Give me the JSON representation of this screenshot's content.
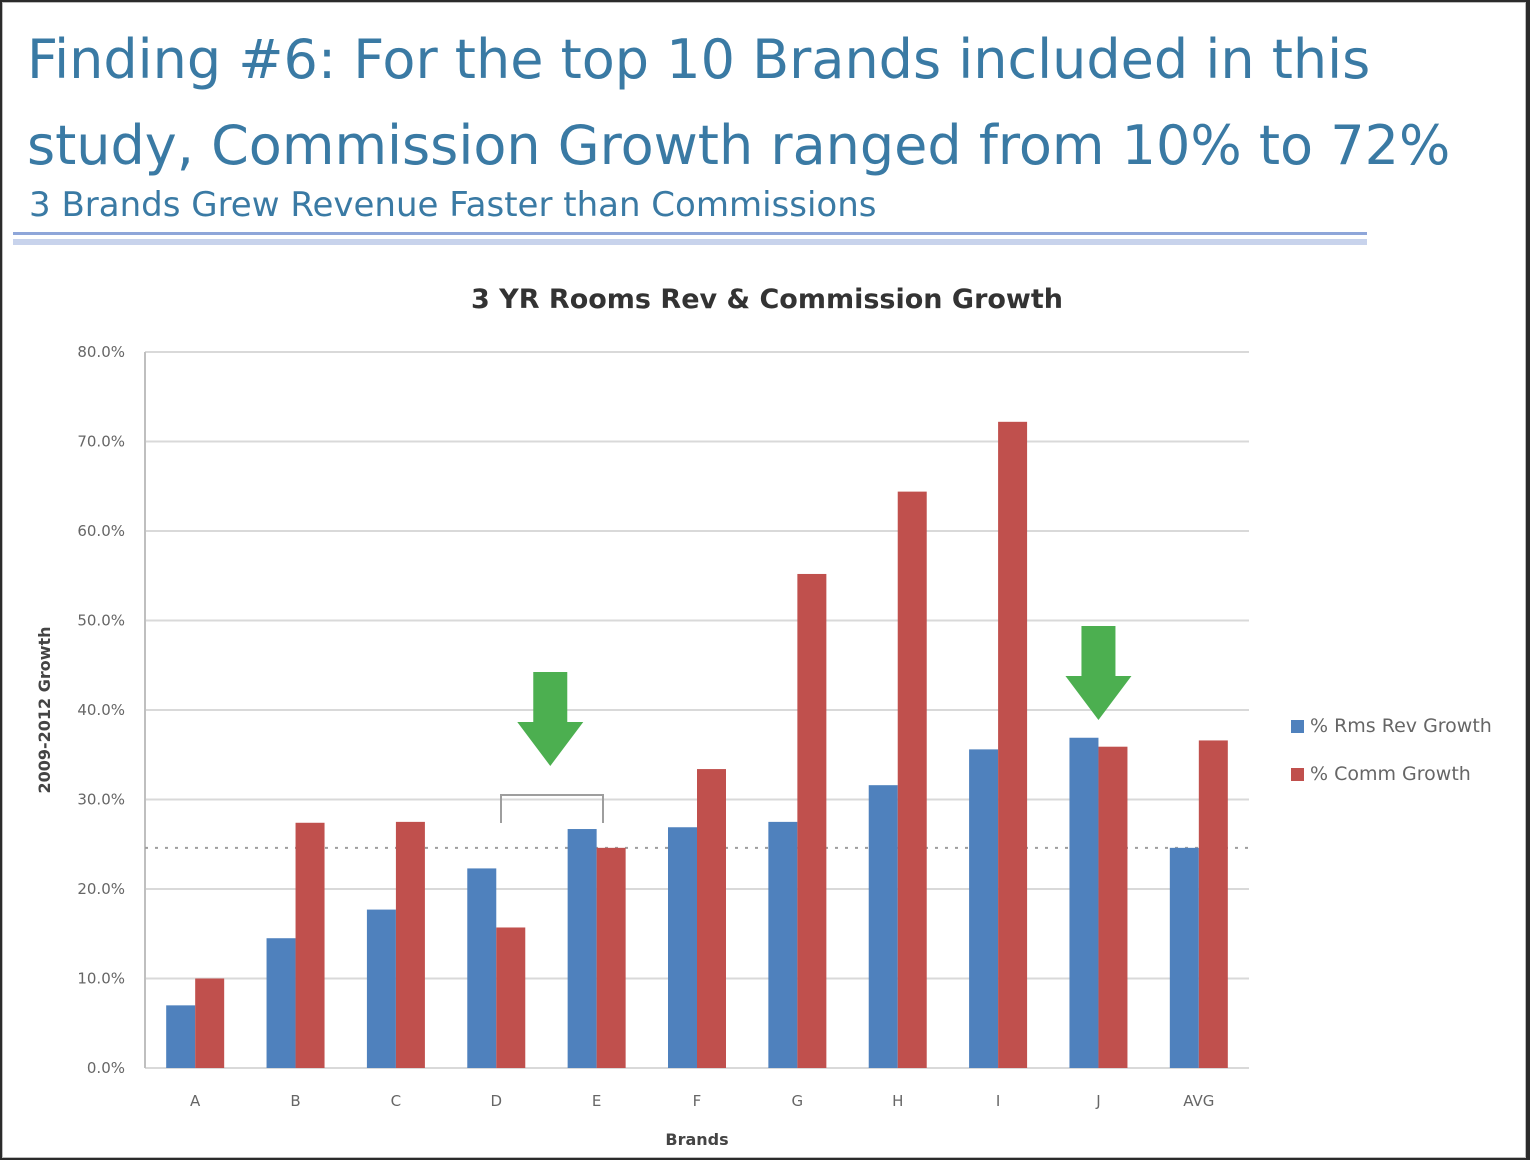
{
  "slide": {
    "title": "Finding #6: For the top 10 Brands included in this study, Commission Growth ranged from 10% to 72%",
    "subtitle": "3  Brands Grew Revenue Faster than Commissions"
  },
  "colors": {
    "title_text": "#3a7aa4",
    "rev_series": "#4f81bd",
    "comm_series": "#c0504d",
    "arrow": "#4caf50",
    "gridline": "#d9d9d9",
    "average_line": "#9e9e9e"
  },
  "chart_data": {
    "type": "bar",
    "title": "3 YR Rooms Rev & Commission Growth",
    "xlabel": "Brands",
    "ylabel": "2009-2012 Growth",
    "categories": [
      "A",
      "B",
      "C",
      "D",
      "E",
      "F",
      "G",
      "H",
      "I",
      "J",
      "AVG"
    ],
    "series": [
      {
        "name": "% Rms Rev Growth",
        "values": [
          7.0,
          14.5,
          17.7,
          22.3,
          26.7,
          26.9,
          27.5,
          31.6,
          35.6,
          36.9,
          24.6
        ]
      },
      {
        "name": "% Comm Growth",
        "values": [
          10.0,
          27.4,
          27.5,
          15.7,
          24.6,
          33.4,
          55.2,
          64.4,
          72.2,
          35.9,
          36.6
        ]
      }
    ],
    "ylim": [
      0,
      80
    ],
    "yticks": [
      "0.0%",
      "10.0%",
      "20.0%",
      "30.0%",
      "40.0%",
      "50.0%",
      "60.0%",
      "70.0%",
      "80.0%"
    ],
    "grid": true,
    "legend_position": "right",
    "average_reference_line": 24.6,
    "annotations": [
      {
        "type": "down-arrow",
        "category": "D"
      },
      {
        "type": "bracket",
        "categories": [
          "D",
          "E"
        ]
      },
      {
        "type": "down-arrow",
        "category": "J"
      }
    ]
  }
}
